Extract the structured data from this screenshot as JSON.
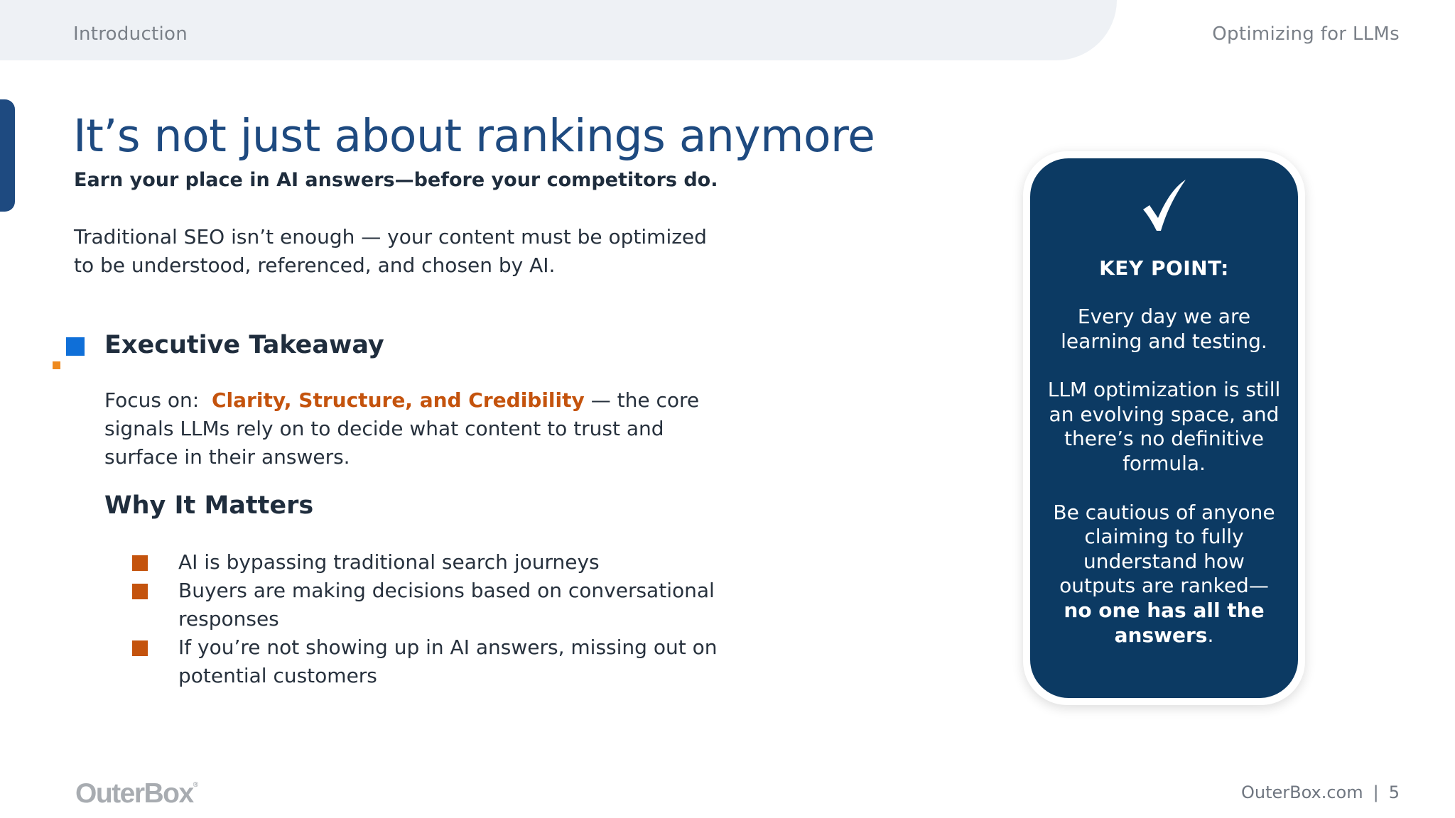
{
  "header": {
    "section": "Introduction",
    "deck_title": "Optimizing for LLMs"
  },
  "slide": {
    "title": "It’s not just about rankings anymore",
    "subtitle": "Earn your place in AI answers—before your competitors do.",
    "intro": "Traditional SEO isn’t enough — your content must be optimized to be understood, referenced, and chosen by AI."
  },
  "takeaway": {
    "heading": "Executive Takeaway",
    "focus_prefix": "Focus on:",
    "focus_highlight": "Clarity, Structure, and Credibility",
    "focus_suffix": "— the core signals LLMs rely on to decide what content to trust and surface in their answers."
  },
  "why": {
    "heading": "Why It Matters",
    "bullets": [
      "AI is bypassing traditional search journeys",
      "Buyers are making decisions based on conversational responses",
      "If you’re not showing up in AI answers, missing out on potential customers"
    ]
  },
  "key_point": {
    "icon": "checkmark-icon",
    "label": "KEY POINT:",
    "para1": "Every day we are learning and testing.",
    "para2": "LLM optimization is still an evolving space, and there’s no definitive formula.",
    "para3_lead": "Be cautious of anyone claiming to fully understand how outputs are ranked—",
    "para3_bold": "no one has all the answers",
    "para3_end": "."
  },
  "footer": {
    "logo_text": "OuterBox",
    "logo_mark": "®",
    "site": "OuterBox.com",
    "separator": "|",
    "page_number": "5"
  },
  "colors": {
    "title_blue": "#1e4a80",
    "card_navy": "#0c3a63",
    "accent_orange": "#c4530d",
    "accent_blue": "#0f6fd8",
    "header_band": "#eef1f5"
  }
}
